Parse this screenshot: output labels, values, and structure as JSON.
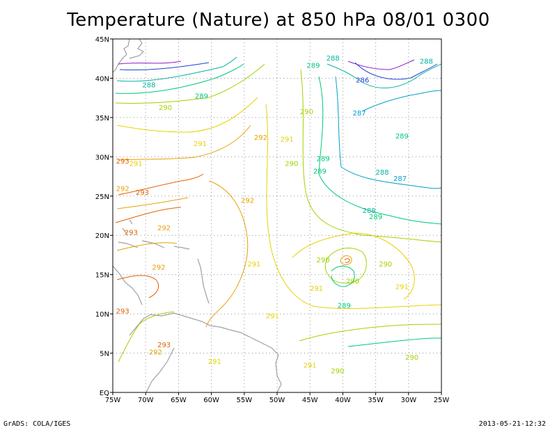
{
  "title": "Temperature (Nature) at 850 hPa 08/01 0300",
  "footer": {
    "left": "GrADS: COLA/IGES",
    "right": "2013-05-21-12:32"
  },
  "axes": {
    "lon_labels": [
      "75W",
      "70W",
      "65W",
      "60W",
      "55W",
      "50W",
      "45W",
      "40W",
      "35W",
      "30W",
      "25W"
    ],
    "lat_labels": [
      "EQ",
      "5N",
      "10N",
      "15N",
      "20N",
      "25N",
      "30N",
      "35N",
      "40N",
      "45N"
    ]
  },
  "colors": {
    "286": "#1c3fd6",
    "287": "#00a0c8",
    "288": "#00b4a0",
    "289": "#00c878",
    "290": "#a0d200",
    "291": "#e6d200",
    "292": "#e6a000",
    "293": "#e06000",
    "cold": "#8a1aca",
    "land": "#a0a0a0"
  },
  "contour_labels": [
    {
      "text": "288",
      "lon": -69.5,
      "lat": 39.2,
      "color": "288"
    },
    {
      "text": "289",
      "lon": -61.5,
      "lat": 37.8,
      "color": "289"
    },
    {
      "text": "290",
      "lon": -67.0,
      "lat": 36.3,
      "color": "290"
    },
    {
      "text": "291",
      "lon": -71.5,
      "lat": 29.2,
      "color": "291"
    },
    {
      "text": "291",
      "lon": -61.7,
      "lat": 31.7,
      "color": "291"
    },
    {
      "text": "292",
      "lon": -52.5,
      "lat": 32.5,
      "color": "292"
    },
    {
      "text": "292",
      "lon": -73.5,
      "lat": 26.0,
      "color": "292"
    },
    {
      "text": "293",
      "lon": -70.5,
      "lat": 25.5,
      "color": "293"
    },
    {
      "text": "292",
      "lon": -54.5,
      "lat": 24.5,
      "color": "292"
    },
    {
      "text": "293",
      "lon": -73.5,
      "lat": 29.5,
      "color": "293"
    },
    {
      "text": "291",
      "lon": -48.5,
      "lat": 32.3,
      "color": "291"
    },
    {
      "text": "290",
      "lon": -45.5,
      "lat": 35.8,
      "color": "290"
    },
    {
      "text": "290",
      "lon": -47.8,
      "lat": 29.2,
      "color": "290"
    },
    {
      "text": "289",
      "lon": -44.5,
      "lat": 41.7,
      "color": "289"
    },
    {
      "text": "288",
      "lon": -41.5,
      "lat": 42.6,
      "color": "288"
    },
    {
      "text": "286",
      "lon": -37.0,
      "lat": 39.8,
      "color": "286"
    },
    {
      "text": "288",
      "lon": -27.3,
      "lat": 42.2,
      "color": "288"
    },
    {
      "text": "287",
      "lon": -37.5,
      "lat": 35.6,
      "color": "287"
    },
    {
      "text": "289",
      "lon": -31.0,
      "lat": 32.7,
      "color": "289"
    },
    {
      "text": "289",
      "lon": -43.0,
      "lat": 29.8,
      "color": "289"
    },
    {
      "text": "289",
      "lon": -43.5,
      "lat": 28.2,
      "color": "289"
    },
    {
      "text": "288",
      "lon": -34.0,
      "lat": 28.1,
      "color": "288"
    },
    {
      "text": "287",
      "lon": -31.3,
      "lat": 27.3,
      "color": "287"
    },
    {
      "text": "288",
      "lon": -36.0,
      "lat": 23.2,
      "color": "288"
    },
    {
      "text": "289",
      "lon": -35.0,
      "lat": 22.4,
      "color": "289"
    },
    {
      "text": "293",
      "lon": -72.2,
      "lat": 20.4,
      "color": "293"
    },
    {
      "text": "292",
      "lon": -67.2,
      "lat": 21.0,
      "color": "292"
    },
    {
      "text": "292",
      "lon": -68.0,
      "lat": 16.0,
      "color": "292"
    },
    {
      "text": "291",
      "lon": -53.5,
      "lat": 16.4,
      "color": "291"
    },
    {
      "text": "290",
      "lon": -43.0,
      "lat": 16.9,
      "color": "290"
    },
    {
      "text": "290",
      "lon": -33.5,
      "lat": 16.4,
      "color": "290"
    },
    {
      "text": "291",
      "lon": -44.0,
      "lat": 13.3,
      "color": "291"
    },
    {
      "text": "290",
      "lon": -38.5,
      "lat": 14.2,
      "color": "290"
    },
    {
      "text": "291",
      "lon": -31.0,
      "lat": 13.5,
      "color": "291"
    },
    {
      "text": "289",
      "lon": -39.8,
      "lat": 11.1,
      "color": "289"
    },
    {
      "text": "291",
      "lon": -50.7,
      "lat": 9.8,
      "color": "291"
    },
    {
      "text": "293",
      "lon": -73.5,
      "lat": 10.4,
      "color": "293"
    },
    {
      "text": "293",
      "lon": -67.2,
      "lat": 6.1,
      "color": "293"
    },
    {
      "text": "292",
      "lon": -68.5,
      "lat": 5.2,
      "color": "292"
    },
    {
      "text": "291",
      "lon": -59.5,
      "lat": 4.0,
      "color": "291"
    },
    {
      "text": "291",
      "lon": -45.0,
      "lat": 3.5,
      "color": "291"
    },
    {
      "text": "290",
      "lon": -29.5,
      "lat": 4.5,
      "color": "290"
    },
    {
      "text": "290",
      "lon": -40.8,
      "lat": 2.8,
      "color": "290"
    }
  ]
}
